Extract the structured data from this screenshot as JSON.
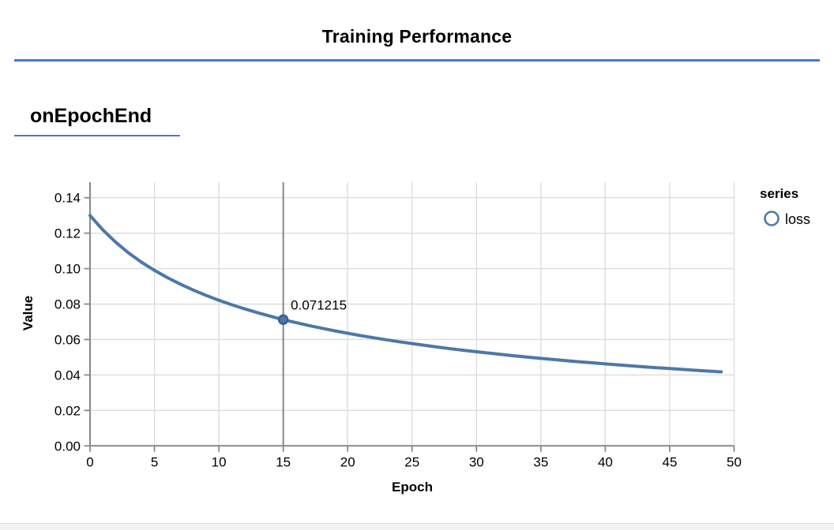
{
  "header": {
    "title": "Training Performance"
  },
  "section": {
    "title": "onEpochEnd"
  },
  "colors": {
    "accent_rule": "#4677d7",
    "line": "#4c78a8",
    "point_fill": "#4c78a8",
    "point_stroke": "#3a5f94",
    "grid": "#dddddd",
    "axis": "#888888",
    "crosshair": "#888888",
    "strip_bg": "#f2f2f2",
    "strip_border": "#dcdcdc"
  },
  "chart_data": {
    "type": "line",
    "title": "",
    "xlabel": "Epoch",
    "ylabel": "Value",
    "xlim": [
      0,
      50
    ],
    "ylim": [
      0,
      0.149
    ],
    "x_ticks": [
      0,
      5,
      10,
      15,
      20,
      25,
      30,
      35,
      40,
      45,
      50
    ],
    "y_ticks": [
      0.0,
      0.02,
      0.04,
      0.06,
      0.08,
      0.1,
      0.12,
      0.14
    ],
    "grid": true,
    "legend": {
      "title": "series",
      "position": "right",
      "entries": [
        {
          "label": "loss",
          "marker": "circle-outline",
          "color": "#4c78a8"
        }
      ]
    },
    "highlight": {
      "x": 15,
      "value": 0.071215,
      "label": "0.071215"
    },
    "series": [
      {
        "name": "loss",
        "x": [
          0,
          1,
          2,
          3,
          4,
          5,
          6,
          7,
          8,
          9,
          10,
          11,
          12,
          13,
          14,
          15,
          16,
          17,
          18,
          19,
          20,
          21,
          22,
          23,
          24,
          25,
          26,
          27,
          28,
          29,
          30,
          31,
          32,
          33,
          34,
          35,
          36,
          37,
          38,
          39,
          40,
          41,
          42,
          43,
          44,
          45,
          46,
          47,
          48,
          49
        ],
        "values": [
          0.13,
          0.1218,
          0.11485,
          0.1088,
          0.1036,
          0.099,
          0.09492,
          0.09125,
          0.08793,
          0.08491,
          0.08214,
          0.0796,
          0.07729,
          0.07514,
          0.07314,
          0.071215,
          0.06952,
          0.06785,
          0.06633,
          0.0649,
          0.06353,
          0.06223,
          0.06099,
          0.05985,
          0.05875,
          0.0577,
          0.0567,
          0.05571,
          0.0548,
          0.05394,
          0.05309,
          0.05227,
          0.05151,
          0.05075,
          0.05003,
          0.04937,
          0.0487,
          0.04803,
          0.04741,
          0.04684,
          0.04623,
          0.0457,
          0.04513,
          0.0446,
          0.04408,
          0.0436,
          0.04313,
          0.04265,
          0.04217,
          0.04175
        ]
      }
    ]
  }
}
